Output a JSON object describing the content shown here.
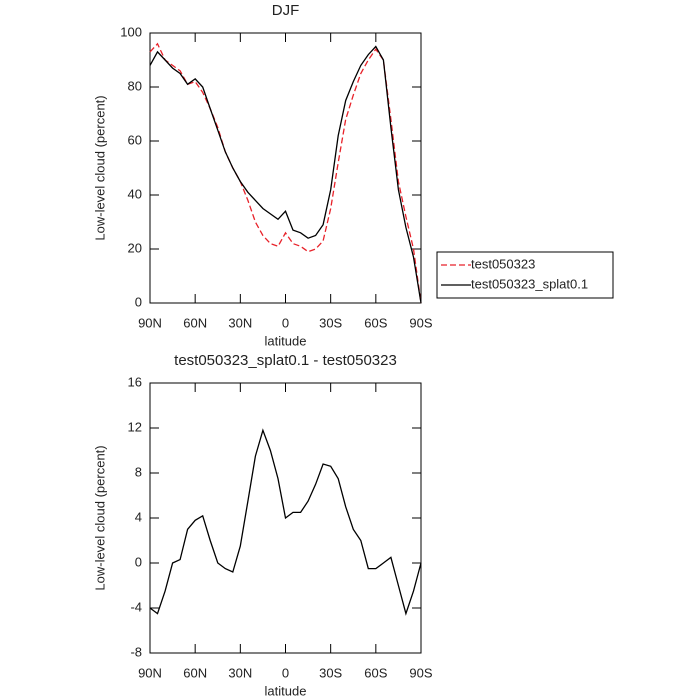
{
  "chart_data": [
    {
      "type": "line",
      "title": "DJF",
      "xlabel": "latitude",
      "ylabel": "Low-level cloud (percent)",
      "x": [
        90,
        85,
        80,
        75,
        70,
        65,
        60,
        55,
        50,
        45,
        40,
        35,
        30,
        25,
        20,
        15,
        10,
        5,
        0,
        -5,
        -10,
        -15,
        -20,
        -25,
        -30,
        -35,
        -40,
        -45,
        -50,
        -55,
        -60,
        -65,
        -70,
        -75,
        -80,
        -85,
        -90
      ],
      "xlim": [
        90,
        -90
      ],
      "xticks": [
        {
          "value": 90,
          "label": "90N"
        },
        {
          "value": 60,
          "label": "60N"
        },
        {
          "value": 30,
          "label": "30N"
        },
        0,
        {
          "value": -30,
          "label": "30S"
        },
        {
          "value": -60,
          "label": "60S"
        },
        {
          "value": -90,
          "label": "90S"
        }
      ],
      "ylim": [
        0,
        100
      ],
      "yticks": [
        0,
        20,
        40,
        60,
        80,
        100
      ],
      "legend": "right",
      "series": [
        {
          "name": "test050323",
          "color": "#e8222a",
          "dash": true,
          "values": [
            93,
            96,
            90,
            88,
            86,
            81,
            82,
            78,
            72,
            65,
            56,
            50,
            45,
            38,
            30,
            25,
            22,
            21,
            26,
            22,
            21,
            19,
            20,
            23,
            35,
            52,
            68,
            77,
            85,
            90,
            94,
            90,
            68,
            45,
            32,
            20,
            0
          ]
        },
        {
          "name": "test050323_splat0.1",
          "color": "#000000",
          "dash": false,
          "values": [
            88,
            93,
            90,
            87,
            85,
            81,
            83,
            80,
            72,
            64,
            56,
            50,
            45,
            41,
            38,
            35,
            33,
            31,
            34,
            27,
            26,
            24,
            25,
            29,
            42,
            62,
            75,
            82,
            88,
            92,
            95,
            90,
            65,
            42,
            28,
            17,
            0
          ]
        }
      ]
    },
    {
      "type": "line",
      "title": "test050323_splat0.1 - test050323",
      "xlabel": "latitude",
      "ylabel": "Low-level cloud (percent)",
      "x": [
        90,
        85,
        80,
        75,
        70,
        65,
        60,
        55,
        50,
        45,
        40,
        35,
        30,
        25,
        20,
        15,
        10,
        5,
        0,
        -5,
        -10,
        -15,
        -20,
        -25,
        -30,
        -35,
        -40,
        -45,
        -50,
        -55,
        -60,
        -65,
        -70,
        -75,
        -80,
        -85,
        -90
      ],
      "xlim": [
        90,
        -90
      ],
      "xticks": [
        {
          "value": 90,
          "label": "90N"
        },
        {
          "value": 60,
          "label": "60N"
        },
        {
          "value": 30,
          "label": "30N"
        },
        0,
        {
          "value": -30,
          "label": "30S"
        },
        {
          "value": -60,
          "label": "60S"
        },
        {
          "value": -90,
          "label": "90S"
        }
      ],
      "ylim": [
        -8,
        16
      ],
      "yticks": [
        -8,
        -4,
        0,
        4,
        8,
        12,
        16
      ],
      "series": [
        {
          "name": null,
          "color": "#000000",
          "dash": false,
          "values": [
            -4,
            -4.5,
            -2.5,
            0,
            0.3,
            3,
            3.8,
            4.2,
            2,
            0,
            -0.5,
            -0.8,
            1.5,
            5.5,
            9.5,
            11.8,
            10,
            7.5,
            4,
            4.5,
            4.5,
            5.5,
            7,
            8.8,
            8.6,
            7.5,
            5,
            3,
            2,
            -0.5,
            -0.5,
            0,
            0.5,
            -2,
            -4.5,
            -2.5,
            0
          ]
        }
      ]
    }
  ]
}
